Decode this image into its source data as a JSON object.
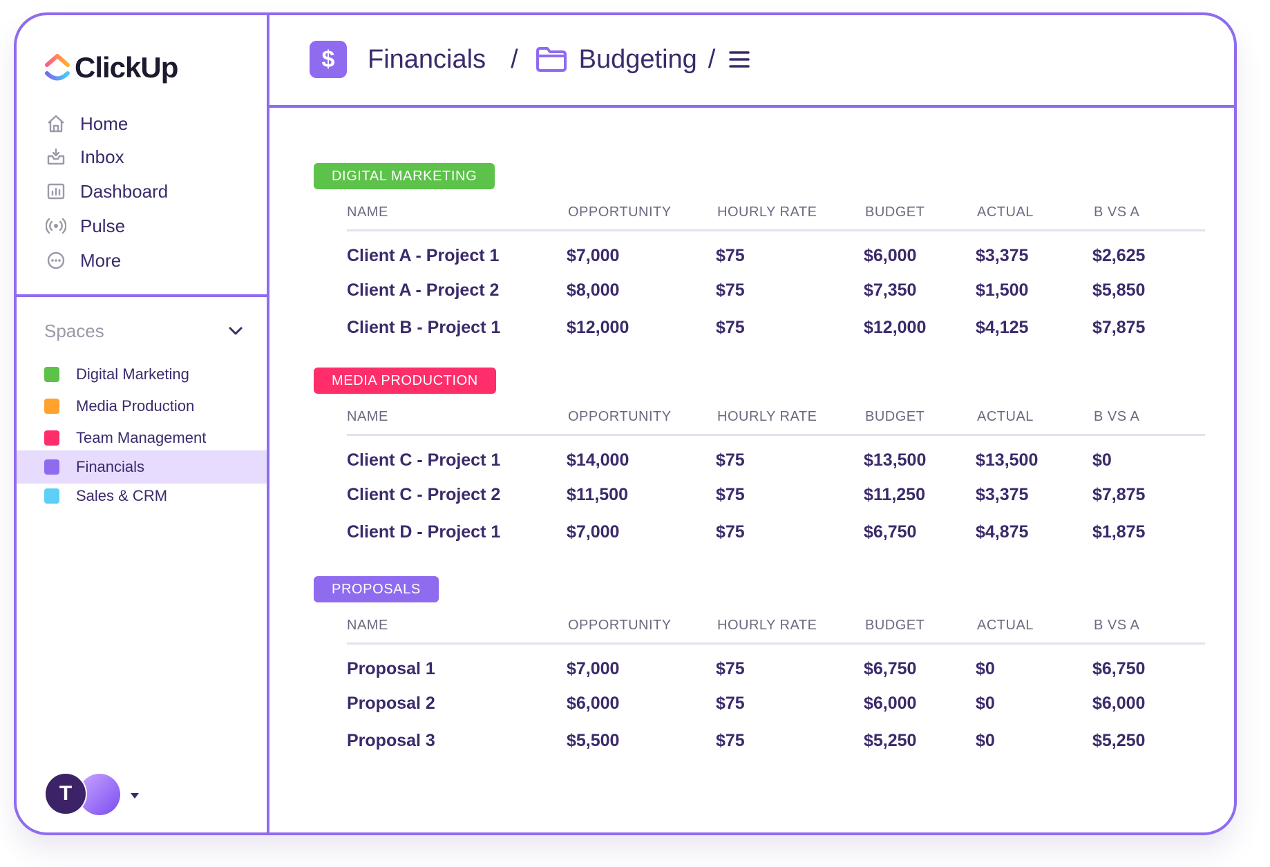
{
  "app": {
    "brand": "ClickUp",
    "brand_colors": [
      "#7b68ee",
      "#ff5c8a",
      "#ffb22c",
      "#49ccf9"
    ]
  },
  "sidebar": {
    "nav": [
      {
        "label": "Home",
        "icon": "home-icon"
      },
      {
        "label": "Inbox",
        "icon": "inbox-icon"
      },
      {
        "label": "Dashboard",
        "icon": "dashboard-icon"
      },
      {
        "label": "Pulse",
        "icon": "pulse-icon"
      },
      {
        "label": "More",
        "icon": "more-icon"
      }
    ],
    "spaces_label": "Spaces",
    "spaces": [
      {
        "label": "Digital Marketing",
        "color": "#5cc24a",
        "active": false
      },
      {
        "label": "Media Production",
        "color": "#ffa22e",
        "active": false
      },
      {
        "label": "Team Management",
        "color": "#ff2e6a",
        "active": false
      },
      {
        "label": "Financials",
        "color": "#8f6bf0",
        "active": true
      },
      {
        "label": "Sales & CRM",
        "color": "#5ccff6",
        "active": false
      }
    ],
    "avatar_initial": "T"
  },
  "header": {
    "badge": "$",
    "crumb1": "Financials",
    "sep1": "/",
    "crumb2": "Budgeting",
    "sep2": "/"
  },
  "columns": [
    "NAME",
    "OPPORTUNITY",
    "HOURLY RATE",
    "BUDGET",
    "ACTUAL",
    "B VS A"
  ],
  "groups": [
    {
      "label": "DIGITAL MARKETING",
      "color": "#5cc24a",
      "rows": [
        [
          "Client A - Project 1",
          "$7,000",
          "$75",
          "$6,000",
          "$3,375",
          "$2,625"
        ],
        [
          "Client A - Project 2",
          "$8,000",
          "$75",
          "$7,350",
          "$1,500",
          "$5,850"
        ],
        [
          "Client B - Project 1",
          "$12,000",
          "$75",
          "$12,000",
          "$4,125",
          "$7,875"
        ]
      ]
    },
    {
      "label": "MEDIA PRODUCTION",
      "color": "#ff2e6a",
      "rows": [
        [
          "Client C - Project 1",
          "$14,000",
          "$75",
          "$13,500",
          "$13,500",
          "$0"
        ],
        [
          "Client C - Project 2",
          "$11,500",
          "$75",
          "$11,250",
          "$3,375",
          "$7,875"
        ],
        [
          "Client D - Project 1",
          "$7,000",
          "$75",
          "$6,750",
          "$4,875",
          "$1,875"
        ]
      ]
    },
    {
      "label": "PROPOSALS",
      "color": "#8f6bf0",
      "rows": [
        [
          "Proposal 1",
          "$7,000",
          "$75",
          "$6,750",
          "$0",
          "$6,750"
        ],
        [
          "Proposal 2",
          "$6,000",
          "$75",
          "$6,000",
          "$0",
          "$6,000"
        ],
        [
          "Proposal 3",
          "$5,500",
          "$75",
          "$5,250",
          "$0",
          "$5,250"
        ]
      ]
    }
  ]
}
